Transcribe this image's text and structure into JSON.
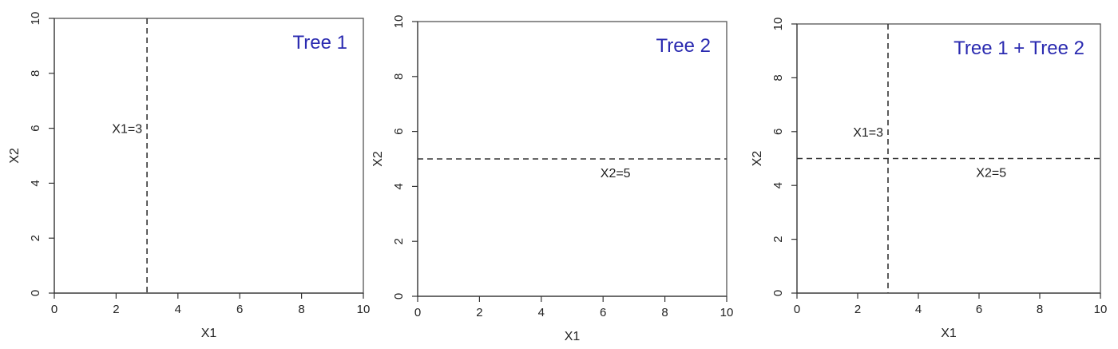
{
  "chart_data": [
    {
      "type": "line",
      "title": "Tree 1",
      "xlabel": "X1",
      "ylabel": "X2",
      "xlim": [
        0,
        10
      ],
      "ylim": [
        0,
        10
      ],
      "xticks": [
        "0",
        "2",
        "4",
        "6",
        "8",
        "10"
      ],
      "yticks": [
        "0",
        "2",
        "4",
        "6",
        "8",
        "10"
      ],
      "grid": false,
      "splits": [
        {
          "axis": "x",
          "value": 3,
          "label": "X1=3",
          "label_at": 6
        }
      ]
    },
    {
      "type": "line",
      "title": "Tree 2",
      "xlabel": "X1",
      "ylabel": "X2",
      "xlim": [
        0,
        10
      ],
      "ylim": [
        0,
        10
      ],
      "xticks": [
        "0",
        "2",
        "4",
        "6",
        "8",
        "10"
      ],
      "yticks": [
        "0",
        "2",
        "4",
        "6",
        "8",
        "10"
      ],
      "grid": false,
      "splits": [
        {
          "axis": "y",
          "value": 5,
          "label": "X2=5",
          "label_at": 6.4
        }
      ]
    },
    {
      "type": "line",
      "title": "Tree 1 + Tree 2",
      "xlabel": "X1",
      "ylabel": "X2",
      "xlim": [
        0,
        10
      ],
      "ylim": [
        0,
        10
      ],
      "xticks": [
        "0",
        "2",
        "4",
        "6",
        "8",
        "10"
      ],
      "yticks": [
        "0",
        "2",
        "4",
        "6",
        "8",
        "10"
      ],
      "grid": false,
      "splits": [
        {
          "axis": "x",
          "value": 3,
          "label": "X1=3",
          "label_at": 6
        },
        {
          "axis": "y",
          "value": 5,
          "label": "X2=5",
          "label_at": 6.4
        }
      ]
    }
  ],
  "colors": {
    "title": "#2a2ab0",
    "split_line": "#333333",
    "frame": "#555555"
  }
}
